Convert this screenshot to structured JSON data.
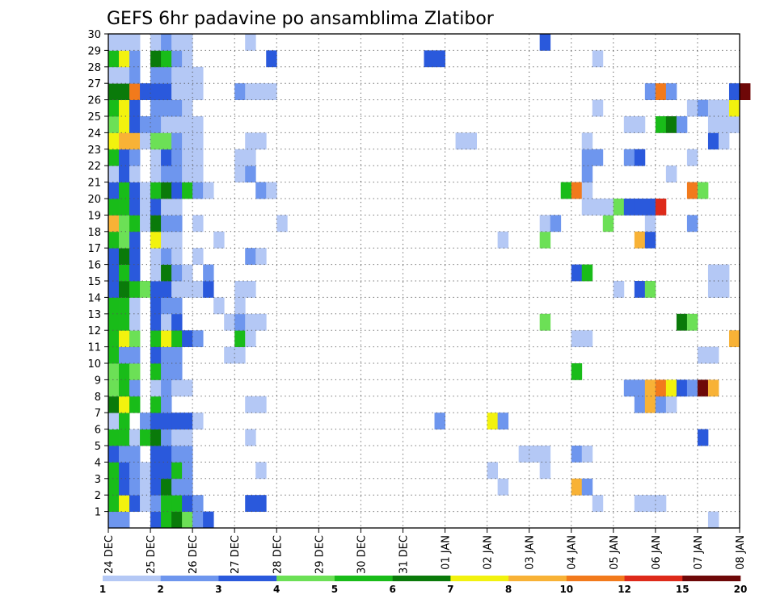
{
  "chart_data": {
    "type": "heatmap",
    "title": "GEFS 6hr padavine po ansamblima Zlatibor",
    "xlabel": "",
    "ylabel": "",
    "x_tick_labels": [
      "24 DEC",
      "25 DEC",
      "26 DEC",
      "27 DEC",
      "28 DEC",
      "29 DEC",
      "30 DEC",
      "31 DEC",
      "01 JAN",
      "02 JAN",
      "03 JAN",
      "04 JAN",
      "05 JAN",
      "06 JAN",
      "07 JAN",
      "08 JAN"
    ],
    "y_tick_labels": [
      "1",
      "2",
      "3",
      "4",
      "5",
      "6",
      "7",
      "8",
      "9",
      "10",
      "11",
      "12",
      "13",
      "14",
      "15",
      "16",
      "17",
      "18",
      "19",
      "20",
      "21",
      "22",
      "23",
      "24",
      "25",
      "26",
      "27",
      "28",
      "29",
      "30"
    ],
    "steps_per_day": 4,
    "x_range_steps": [
      0,
      60
    ],
    "members": 30,
    "grid": true,
    "colorbar": {
      "labels": [
        "1",
        "2",
        "3",
        "4",
        "5",
        "6",
        "7",
        "8",
        "10",
        "12",
        "15",
        "20"
      ],
      "colors": [
        "#b4c8f5",
        "#6e96ee",
        "#2a59dc",
        "#6ce056",
        "#19bc19",
        "#0a7a0a",
        "#f2f20e",
        "#f8b236",
        "#f27a1c",
        "#de2a1a",
        "#6e0808"
      ]
    },
    "cells": [
      [
        0,
        0,
        2
      ],
      [
        1,
        0,
        2
      ],
      [
        4,
        0,
        3
      ],
      [
        5,
        0,
        5
      ],
      [
        6,
        0,
        6
      ],
      [
        7,
        0,
        4
      ],
      [
        8,
        0,
        2
      ],
      [
        9,
        0,
        3
      ],
      [
        57,
        0,
        1
      ],
      [
        0,
        1,
        5
      ],
      [
        1,
        1,
        7
      ],
      [
        2,
        1,
        3
      ],
      [
        3,
        1,
        1
      ],
      [
        4,
        1,
        2
      ],
      [
        5,
        1,
        5
      ],
      [
        6,
        1,
        5
      ],
      [
        7,
        1,
        3
      ],
      [
        8,
        1,
        2
      ],
      [
        13,
        1,
        3
      ],
      [
        14,
        1,
        3
      ],
      [
        46,
        1,
        1
      ],
      [
        50,
        1,
        1
      ],
      [
        51,
        1,
        1
      ],
      [
        52,
        1,
        1
      ],
      [
        0,
        2,
        5
      ],
      [
        1,
        2,
        3
      ],
      [
        2,
        2,
        2
      ],
      [
        3,
        2,
        1
      ],
      [
        4,
        2,
        3
      ],
      [
        5,
        2,
        6
      ],
      [
        6,
        2,
        2
      ],
      [
        7,
        2,
        2
      ],
      [
        37,
        2,
        1
      ],
      [
        44,
        2,
        8
      ],
      [
        45,
        2,
        2
      ],
      [
        0,
        3,
        5
      ],
      [
        1,
        3,
        3
      ],
      [
        2,
        3,
        2
      ],
      [
        3,
        3,
        1
      ],
      [
        4,
        3,
        3
      ],
      [
        5,
        3,
        3
      ],
      [
        6,
        3,
        5
      ],
      [
        7,
        3,
        2
      ],
      [
        14,
        3,
        1
      ],
      [
        36,
        3,
        1
      ],
      [
        41,
        3,
        1
      ],
      [
        0,
        4,
        3
      ],
      [
        1,
        4,
        2
      ],
      [
        2,
        4,
        2
      ],
      [
        4,
        4,
        3
      ],
      [
        5,
        4,
        3
      ],
      [
        6,
        4,
        2
      ],
      [
        7,
        4,
        2
      ],
      [
        39,
        4,
        1
      ],
      [
        40,
        4,
        1
      ],
      [
        41,
        4,
        1
      ],
      [
        44,
        4,
        2
      ],
      [
        45,
        4,
        1
      ],
      [
        0,
        5,
        5
      ],
      [
        1,
        5,
        5
      ],
      [
        2,
        5,
        1
      ],
      [
        3,
        5,
        5
      ],
      [
        4,
        5,
        6
      ],
      [
        5,
        5,
        2
      ],
      [
        6,
        5,
        1
      ],
      [
        7,
        5,
        1
      ],
      [
        13,
        5,
        1
      ],
      [
        56,
        5,
        3
      ],
      [
        0,
        6,
        1
      ],
      [
        1,
        6,
        5
      ],
      [
        3,
        6,
        2
      ],
      [
        4,
        6,
        3
      ],
      [
        5,
        6,
        3
      ],
      [
        6,
        6,
        3
      ],
      [
        7,
        6,
        3
      ],
      [
        8,
        6,
        1
      ],
      [
        31,
        6,
        2
      ],
      [
        36,
        6,
        7
      ],
      [
        37,
        6,
        2
      ],
      [
        0,
        7,
        6
      ],
      [
        1,
        7,
        7
      ],
      [
        2,
        7,
        5
      ],
      [
        4,
        7,
        5
      ],
      [
        5,
        7,
        2
      ],
      [
        13,
        7,
        1
      ],
      [
        14,
        7,
        1
      ],
      [
        50,
        7,
        2
      ],
      [
        51,
        7,
        8
      ],
      [
        52,
        7,
        2
      ],
      [
        53,
        7,
        1
      ],
      [
        0,
        8,
        4
      ],
      [
        1,
        8,
        5
      ],
      [
        2,
        8,
        2
      ],
      [
        4,
        8,
        1
      ],
      [
        5,
        8,
        2
      ],
      [
        6,
        8,
        1
      ],
      [
        7,
        8,
        1
      ],
      [
        49,
        8,
        2
      ],
      [
        50,
        8,
        2
      ],
      [
        51,
        8,
        8
      ],
      [
        52,
        8,
        9
      ],
      [
        53,
        8,
        7
      ],
      [
        54,
        8,
        3
      ],
      [
        55,
        8,
        2
      ],
      [
        56,
        8,
        11
      ],
      [
        57,
        8,
        8
      ],
      [
        0,
        9,
        4
      ],
      [
        1,
        9,
        5
      ],
      [
        2,
        9,
        4
      ],
      [
        4,
        9,
        5
      ],
      [
        5,
        9,
        2
      ],
      [
        6,
        9,
        2
      ],
      [
        44,
        9,
        5
      ],
      [
        0,
        10,
        5
      ],
      [
        1,
        10,
        2
      ],
      [
        2,
        10,
        2
      ],
      [
        4,
        10,
        3
      ],
      [
        5,
        10,
        2
      ],
      [
        6,
        10,
        2
      ],
      [
        11,
        10,
        1
      ],
      [
        12,
        10,
        1
      ],
      [
        56,
        10,
        1
      ],
      [
        57,
        10,
        1
      ],
      [
        0,
        11,
        5
      ],
      [
        1,
        11,
        7
      ],
      [
        2,
        11,
        4
      ],
      [
        4,
        11,
        5
      ],
      [
        5,
        11,
        7
      ],
      [
        6,
        11,
        5
      ],
      [
        7,
        11,
        3
      ],
      [
        8,
        11,
        2
      ],
      [
        12,
        11,
        5
      ],
      [
        13,
        11,
        1
      ],
      [
        44,
        11,
        1
      ],
      [
        45,
        11,
        1
      ],
      [
        59,
        11,
        8
      ],
      [
        0,
        12,
        5
      ],
      [
        1,
        12,
        5
      ],
      [
        2,
        12,
        1
      ],
      [
        4,
        12,
        3
      ],
      [
        5,
        12,
        1
      ],
      [
        6,
        12,
        3
      ],
      [
        11,
        12,
        1
      ],
      [
        12,
        12,
        2
      ],
      [
        13,
        12,
        1
      ],
      [
        14,
        12,
        1
      ],
      [
        41,
        12,
        4
      ],
      [
        54,
        12,
        6
      ],
      [
        55,
        12,
        4
      ],
      [
        0,
        13,
        5
      ],
      [
        1,
        13,
        5
      ],
      [
        2,
        13,
        1
      ],
      [
        4,
        13,
        3
      ],
      [
        5,
        13,
        2
      ],
      [
        6,
        13,
        2
      ],
      [
        10,
        13,
        1
      ],
      [
        12,
        13,
        1
      ],
      [
        0,
        14,
        3
      ],
      [
        1,
        14,
        6
      ],
      [
        2,
        14,
        5
      ],
      [
        3,
        14,
        4
      ],
      [
        4,
        14,
        3
      ],
      [
        5,
        14,
        3
      ],
      [
        6,
        14,
        1
      ],
      [
        7,
        14,
        1
      ],
      [
        8,
        14,
        1
      ],
      [
        9,
        14,
        3
      ],
      [
        12,
        14,
        1
      ],
      [
        13,
        14,
        1
      ],
      [
        48,
        14,
        1
      ],
      [
        50,
        14,
        3
      ],
      [
        51,
        14,
        4
      ],
      [
        57,
        14,
        1
      ],
      [
        58,
        14,
        1
      ],
      [
        0,
        15,
        3
      ],
      [
        1,
        15,
        5
      ],
      [
        2,
        15,
        3
      ],
      [
        4,
        15,
        1
      ],
      [
        5,
        15,
        6
      ],
      [
        6,
        15,
        2
      ],
      [
        7,
        15,
        1
      ],
      [
        9,
        15,
        2
      ],
      [
        44,
        15,
        3
      ],
      [
        45,
        15,
        5
      ],
      [
        57,
        15,
        1
      ],
      [
        58,
        15,
        1
      ],
      [
        0,
        16,
        3
      ],
      [
        1,
        16,
        6
      ],
      [
        2,
        16,
        3
      ],
      [
        4,
        16,
        1
      ],
      [
        5,
        16,
        2
      ],
      [
        6,
        16,
        1
      ],
      [
        8,
        16,
        1
      ],
      [
        13,
        16,
        2
      ],
      [
        14,
        16,
        1
      ],
      [
        0,
        17,
        5
      ],
      [
        1,
        17,
        4
      ],
      [
        2,
        17,
        3
      ],
      [
        4,
        17,
        7
      ],
      [
        5,
        17,
        1
      ],
      [
        6,
        17,
        1
      ],
      [
        10,
        17,
        1
      ],
      [
        37,
        17,
        1
      ],
      [
        41,
        17,
        4
      ],
      [
        50,
        17,
        8
      ],
      [
        51,
        17,
        3
      ],
      [
        0,
        18,
        8
      ],
      [
        1,
        18,
        4
      ],
      [
        2,
        18,
        5
      ],
      [
        3,
        18,
        1
      ],
      [
        4,
        18,
        6
      ],
      [
        5,
        18,
        2
      ],
      [
        6,
        18,
        2
      ],
      [
        8,
        18,
        1
      ],
      [
        16,
        18,
        1
      ],
      [
        41,
        18,
        1
      ],
      [
        42,
        18,
        2
      ],
      [
        47,
        18,
        4
      ],
      [
        51,
        18,
        1
      ],
      [
        55,
        18,
        2
      ],
      [
        0,
        19,
        5
      ],
      [
        1,
        19,
        5
      ],
      [
        2,
        19,
        3
      ],
      [
        3,
        19,
        1
      ],
      [
        4,
        19,
        3
      ],
      [
        5,
        19,
        1
      ],
      [
        6,
        19,
        1
      ],
      [
        45,
        19,
        1
      ],
      [
        46,
        19,
        1
      ],
      [
        47,
        19,
        1
      ],
      [
        48,
        19,
        4
      ],
      [
        49,
        19,
        3
      ],
      [
        50,
        19,
        3
      ],
      [
        51,
        19,
        3
      ],
      [
        52,
        19,
        10
      ],
      [
        0,
        20,
        3
      ],
      [
        1,
        20,
        5
      ],
      [
        2,
        20,
        3
      ],
      [
        3,
        20,
        1
      ],
      [
        4,
        20,
        5
      ],
      [
        5,
        20,
        6
      ],
      [
        6,
        20,
        3
      ],
      [
        7,
        20,
        5
      ],
      [
        8,
        20,
        2
      ],
      [
        9,
        20,
        1
      ],
      [
        14,
        20,
        2
      ],
      [
        15,
        20,
        1
      ],
      [
        43,
        20,
        5
      ],
      [
        44,
        20,
        9
      ],
      [
        45,
        20,
        1
      ],
      [
        55,
        20,
        9
      ],
      [
        56,
        20,
        4
      ],
      [
        0,
        21,
        1
      ],
      [
        1,
        21,
        3
      ],
      [
        2,
        21,
        1
      ],
      [
        4,
        21,
        1
      ],
      [
        5,
        21,
        2
      ],
      [
        6,
        21,
        2
      ],
      [
        7,
        21,
        1
      ],
      [
        8,
        21,
        1
      ],
      [
        12,
        21,
        1
      ],
      [
        13,
        21,
        2
      ],
      [
        45,
        21,
        2
      ],
      [
        53,
        21,
        1
      ],
      [
        0,
        22,
        5
      ],
      [
        1,
        22,
        3
      ],
      [
        2,
        22,
        2
      ],
      [
        4,
        22,
        1
      ],
      [
        5,
        22,
        3
      ],
      [
        6,
        22,
        2
      ],
      [
        7,
        22,
        1
      ],
      [
        8,
        22,
        1
      ],
      [
        12,
        22,
        1
      ],
      [
        13,
        22,
        1
      ],
      [
        45,
        22,
        2
      ],
      [
        46,
        22,
        2
      ],
      [
        49,
        22,
        2
      ],
      [
        50,
        22,
        3
      ],
      [
        55,
        22,
        1
      ],
      [
        0,
        23,
        7
      ],
      [
        1,
        23,
        8
      ],
      [
        2,
        23,
        8
      ],
      [
        3,
        23,
        1
      ],
      [
        4,
        23,
        4
      ],
      [
        5,
        23,
        4
      ],
      [
        6,
        23,
        2
      ],
      [
        7,
        23,
        1
      ],
      [
        8,
        23,
        1
      ],
      [
        13,
        23,
        1
      ],
      [
        14,
        23,
        1
      ],
      [
        33,
        23,
        1
      ],
      [
        34,
        23,
        1
      ],
      [
        45,
        23,
        1
      ],
      [
        57,
        23,
        3
      ],
      [
        58,
        23,
        1
      ],
      [
        0,
        24,
        4
      ],
      [
        1,
        24,
        7
      ],
      [
        2,
        24,
        3
      ],
      [
        3,
        24,
        2
      ],
      [
        4,
        24,
        2
      ],
      [
        5,
        24,
        1
      ],
      [
        6,
        24,
        1
      ],
      [
        7,
        24,
        1
      ],
      [
        8,
        24,
        1
      ],
      [
        49,
        24,
        1
      ],
      [
        50,
        24,
        1
      ],
      [
        52,
        24,
        5
      ],
      [
        53,
        24,
        6
      ],
      [
        54,
        24,
        2
      ],
      [
        57,
        24,
        1
      ],
      [
        58,
        24,
        1
      ],
      [
        59,
        24,
        1
      ],
      [
        0,
        25,
        5
      ],
      [
        1,
        25,
        7
      ],
      [
        2,
        25,
        3
      ],
      [
        4,
        25,
        2
      ],
      [
        5,
        25,
        2
      ],
      [
        6,
        25,
        2
      ],
      [
        7,
        25,
        1
      ],
      [
        46,
        25,
        1
      ],
      [
        55,
        25,
        1
      ],
      [
        56,
        25,
        2
      ],
      [
        57,
        25,
        1
      ],
      [
        58,
        25,
        1
      ],
      [
        59,
        25,
        7
      ],
      [
        0,
        26,
        6
      ],
      [
        1,
        26,
        6
      ],
      [
        2,
        26,
        9
      ],
      [
        3,
        26,
        3
      ],
      [
        4,
        26,
        3
      ],
      [
        5,
        26,
        3
      ],
      [
        6,
        26,
        1
      ],
      [
        7,
        26,
        1
      ],
      [
        8,
        26,
        1
      ],
      [
        12,
        26,
        2
      ],
      [
        13,
        26,
        1
      ],
      [
        14,
        26,
        1
      ],
      [
        15,
        26,
        1
      ],
      [
        51,
        26,
        2
      ],
      [
        52,
        26,
        9
      ],
      [
        53,
        26,
        2
      ],
      [
        59,
        26,
        3
      ],
      [
        60,
        26,
        11
      ],
      [
        0,
        27,
        1
      ],
      [
        1,
        27,
        1
      ],
      [
        2,
        27,
        2
      ],
      [
        4,
        27,
        2
      ],
      [
        5,
        27,
        2
      ],
      [
        6,
        27,
        1
      ],
      [
        7,
        27,
        1
      ],
      [
        8,
        27,
        1
      ],
      [
        0,
        28,
        5
      ],
      [
        1,
        28,
        7
      ],
      [
        2,
        28,
        2
      ],
      [
        4,
        28,
        6
      ],
      [
        5,
        28,
        5
      ],
      [
        6,
        28,
        2
      ],
      [
        7,
        28,
        1
      ],
      [
        15,
        28,
        3
      ],
      [
        30,
        28,
        3
      ],
      [
        31,
        28,
        3
      ],
      [
        46,
        28,
        1
      ],
      [
        0,
        29,
        1
      ],
      [
        1,
        29,
        1
      ],
      [
        2,
        29,
        1
      ],
      [
        4,
        29,
        1
      ],
      [
        5,
        29,
        2
      ],
      [
        6,
        29,
        1
      ],
      [
        7,
        29,
        1
      ],
      [
        13,
        29,
        1
      ],
      [
        41,
        29,
        3
      ]
    ]
  }
}
